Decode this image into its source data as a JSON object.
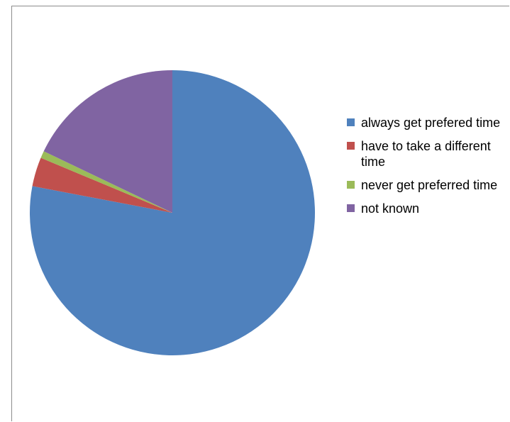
{
  "chart_data": {
    "type": "pie",
    "title": "",
    "start_angle_deg": 0,
    "direction": "clockwise",
    "slices": [
      {
        "label": "always get prefered time",
        "value": 78.0,
        "color": "#4F81BD"
      },
      {
        "label": "have to take a different time",
        "value": 3.3,
        "color": "#C0504D"
      },
      {
        "label": "never get preferred time",
        "value": 0.8,
        "color": "#9BBB59"
      },
      {
        "label": "not known",
        "value": 17.9,
        "color": "#8064A2"
      }
    ],
    "legend_placement": "right"
  }
}
